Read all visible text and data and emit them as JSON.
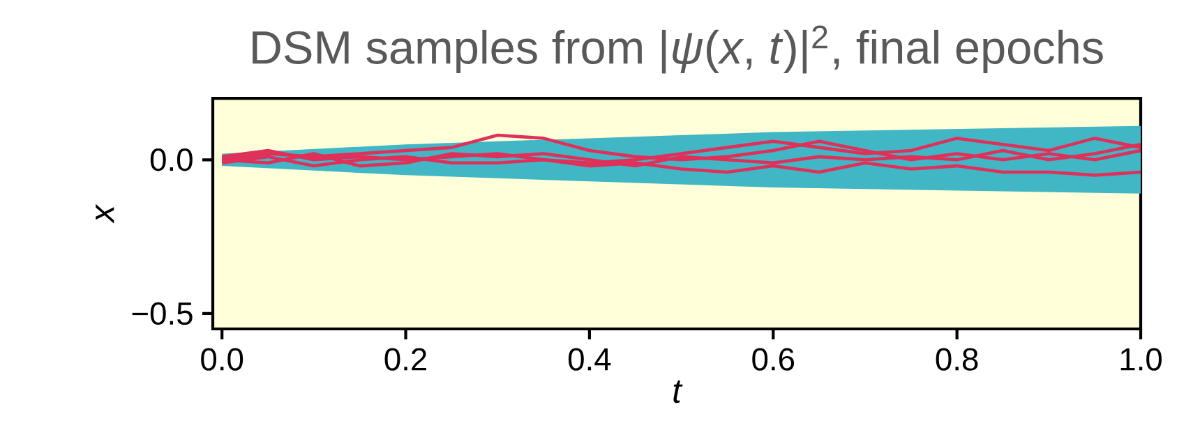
{
  "chart_data": {
    "type": "line",
    "title": "DSM samples from |*ψ*(*x*, *t*)|$^{2}$, final epochs",
    "xlabel": "t",
    "ylabel": "x",
    "x": [
      0,
      0.05,
      0.1,
      0.15,
      0.2,
      0.25,
      0.3,
      0.35,
      0.4,
      0.45,
      0.5,
      0.55,
      0.6,
      0.65,
      0.7,
      0.75,
      0.8,
      0.85,
      0.9,
      0.95,
      1.0
    ],
    "series": [
      {
        "color": "#41b6c4",
        "x": [
          0,
          0.2,
          0.4,
          0.6,
          0.8,
          1.0
        ],
        "values": [
          null,
          null,
          null,
          null,
          null,
          null
        ],
        "lower": [
          -0.02,
          -0.05,
          -0.07,
          -0.09,
          -0.1,
          -0.11
        ],
        "upper": [
          0.02,
          0.05,
          0.07,
          0.09,
          0.1,
          0.11
        ]
      },
      {
        "color": "#e0305a",
        "values": [
          0.0,
          0.02,
          0.01,
          0.02,
          0.03,
          0.04,
          0.08,
          0.07,
          0.03,
          0.01,
          0.0,
          0.01,
          0.03,
          0.06,
          0.03,
          0.0,
          0.02,
          0.0,
          0.02,
          0.0,
          0.03
        ]
      },
      {
        "color": "#e0305a",
        "values": [
          0.01,
          0.03,
          0.0,
          0.01,
          0.0,
          0.01,
          0.02,
          0.0,
          -0.01,
          0.0,
          0.02,
          0.04,
          0.06,
          0.04,
          0.02,
          0.03,
          0.07,
          0.05,
          0.03,
          0.07,
          0.04
        ]
      },
      {
        "color": "#e0305a",
        "values": [
          -0.01,
          0.01,
          -0.02,
          0.0,
          0.01,
          -0.01,
          -0.01,
          0.0,
          -0.02,
          -0.01,
          -0.03,
          -0.04,
          -0.02,
          -0.04,
          -0.01,
          -0.03,
          -0.02,
          -0.04,
          -0.04,
          -0.05,
          -0.04
        ]
      },
      {
        "color": "#e0305a",
        "values": [
          0.0,
          -0.01,
          0.02,
          -0.02,
          -0.01,
          0.02,
          0.01,
          0.02,
          0.0,
          -0.02,
          0.01,
          0.0,
          -0.01,
          0.01,
          0.0,
          0.01,
          0.0,
          0.03,
          0.0,
          0.02,
          0.05
        ]
      }
    ],
    "xlim": [
      -0.01,
      1.0
    ],
    "ylim": [
      -0.55,
      0.2
    ],
    "xticks": [
      {
        "value": 0,
        "label": "0.0"
      },
      {
        "value": 0.2,
        "label": "0.2"
      },
      {
        "value": 0.4,
        "label": "0.4"
      },
      {
        "value": 0.6,
        "label": "0.6"
      },
      {
        "value": 0.8,
        "label": "0.8"
      },
      {
        "value": 1.0,
        "label": "1.0"
      }
    ],
    "yticks": [
      {
        "value": -0.5,
        "label": "−0.5"
      },
      {
        "value": 0,
        "label": "0.0"
      }
    ],
    "marker": "none",
    "line_style": "solid",
    "grid": false
  }
}
